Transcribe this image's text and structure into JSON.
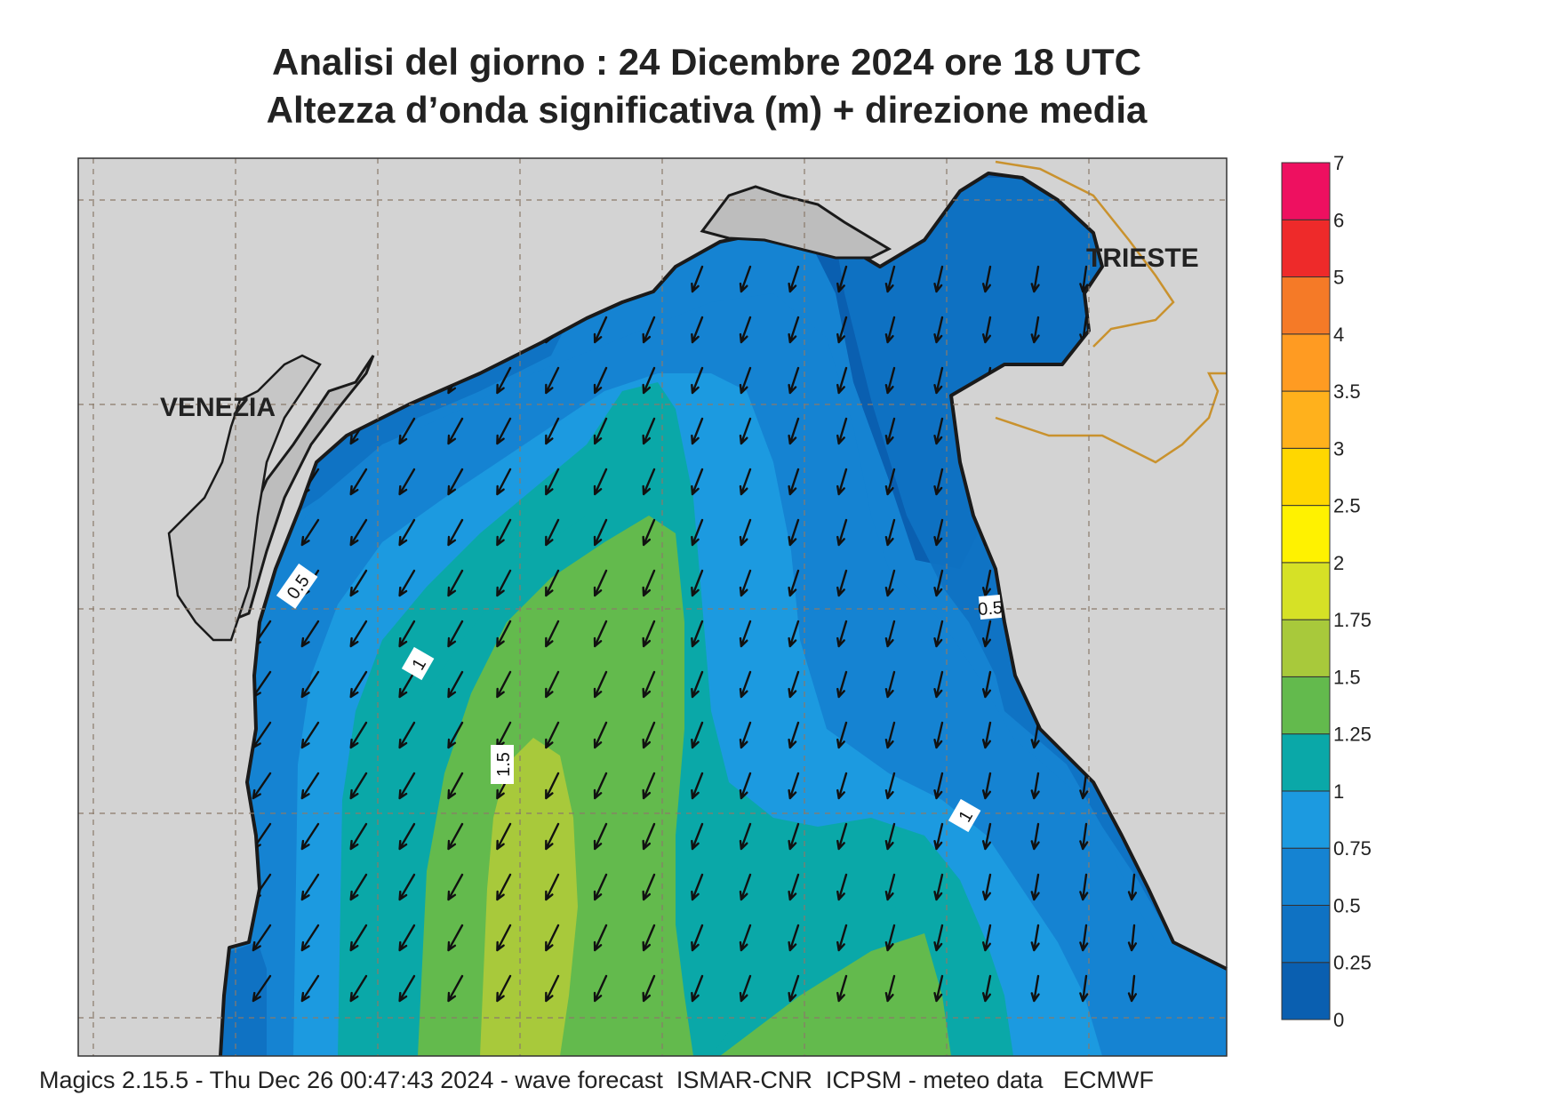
{
  "header": {
    "title_line1": "Analisi del giorno :  24 Dicembre  2024   ore 18 UTC",
    "title_line2": "Altezza d’onda significativa (m) + direzione media"
  },
  "places": [
    {
      "name": "VENEZIA"
    },
    {
      "name": "TRIESTE"
    }
  ],
  "contour_labels": [
    "0.5",
    "1",
    "1.5",
    "0.5",
    "1"
  ],
  "legend": {
    "levels": [
      "0",
      "0.25",
      "0.5",
      "0.75",
      "1",
      "1.25",
      "1.5",
      "1.75",
      "2",
      "2.5",
      "3",
      "3.5",
      "4",
      "5",
      "6",
      "7"
    ],
    "colors": [
      "#0a5fb0",
      "#0f72c3",
      "#1583d2",
      "#1c9ae0",
      "#0aa8a8",
      "#63ba4d",
      "#a8c93b",
      "#d6e126",
      "#fff200",
      "#ffd700",
      "#ffb11c",
      "#ff9b22",
      "#f57a27",
      "#ee2a2a",
      "#ee1060"
    ]
  },
  "footer": "Magics 2.15.5 - Thu Dec 26 00:47:43 2024 - wave forecast  ISMAR-CNR  ICPSM - meteo data   ECMWF",
  "colors": {
    "land": "#d3d3d3",
    "lagoon": "#bdbdbd",
    "coast": "#1a1a1a",
    "border": "#c9922e"
  }
}
